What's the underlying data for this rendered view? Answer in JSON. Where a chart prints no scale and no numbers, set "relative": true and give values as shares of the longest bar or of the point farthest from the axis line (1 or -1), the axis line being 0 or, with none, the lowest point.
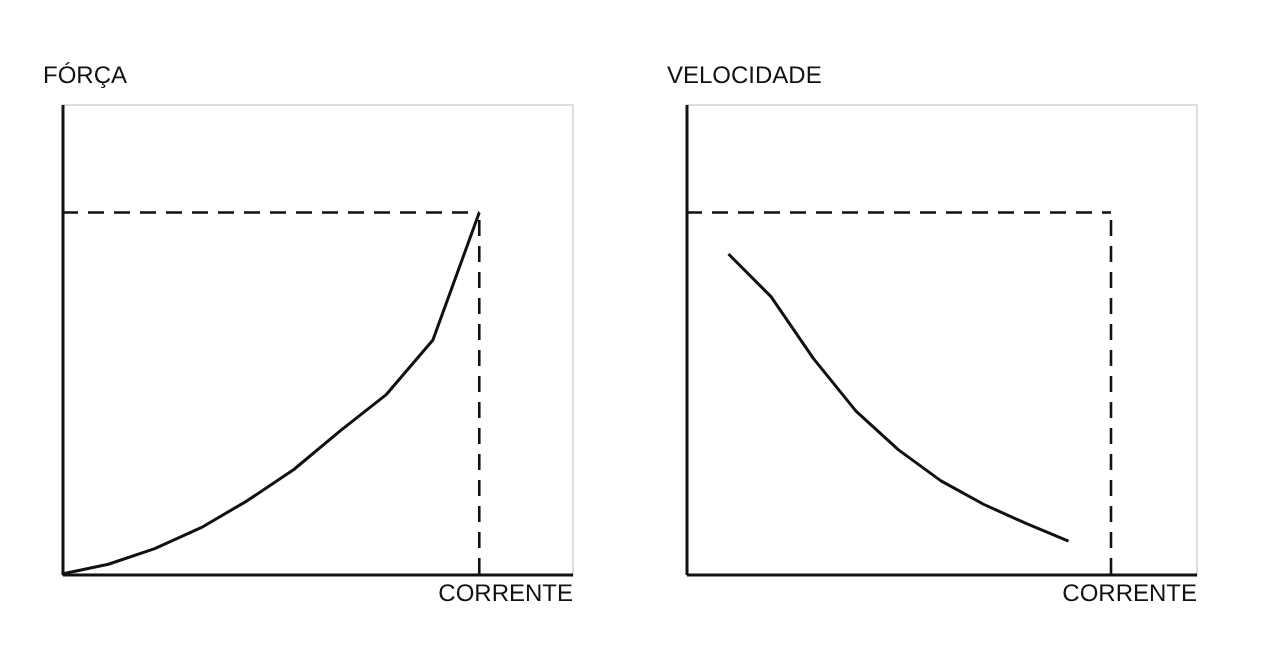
{
  "chart_data": [
    {
      "type": "line",
      "ylabel": "FÓRÇA",
      "xlabel": "CORRENTE",
      "relative": true,
      "tick_labels": false,
      "grid": false,
      "line_style": "solid",
      "marker": "none",
      "categories": [
        null,
        null,
        null,
        null,
        null,
        null,
        null,
        null,
        null,
        null
      ],
      "series": [
        {
          "color": "#111111",
          "values": [
            0,
            0.027,
            0.07,
            0.128,
            0.203,
            0.289,
            0.396,
            0.497,
            0.647,
            1
          ]
        }
      ],
      "ref_lines": [
        {
          "axis": "y",
          "value": 1,
          "line_style": "dashed",
          "color": "#111111"
        }
      ]
    },
    {
      "type": "line",
      "ylabel": "VELOCIDADE",
      "xlabel": "CORRENTE",
      "relative": true,
      "tick_labels": false,
      "grid": false,
      "line_style": "solid",
      "marker": "none",
      "categories": [
        null,
        null,
        null,
        null,
        null,
        null,
        null,
        null,
        null,
        null,
        null
      ],
      "series": [
        {
          "color": "#111111",
          "values": [
            null,
            1,
            0.867,
            0.673,
            0.509,
            0.388,
            0.291,
            0.218,
            0.158,
            0.103,
            null
          ]
        }
      ],
      "ref_lines": [
        {
          "axis": "y",
          "value": 1.13,
          "line_style": "dashed",
          "color": "#111111"
        }
      ]
    }
  ]
}
